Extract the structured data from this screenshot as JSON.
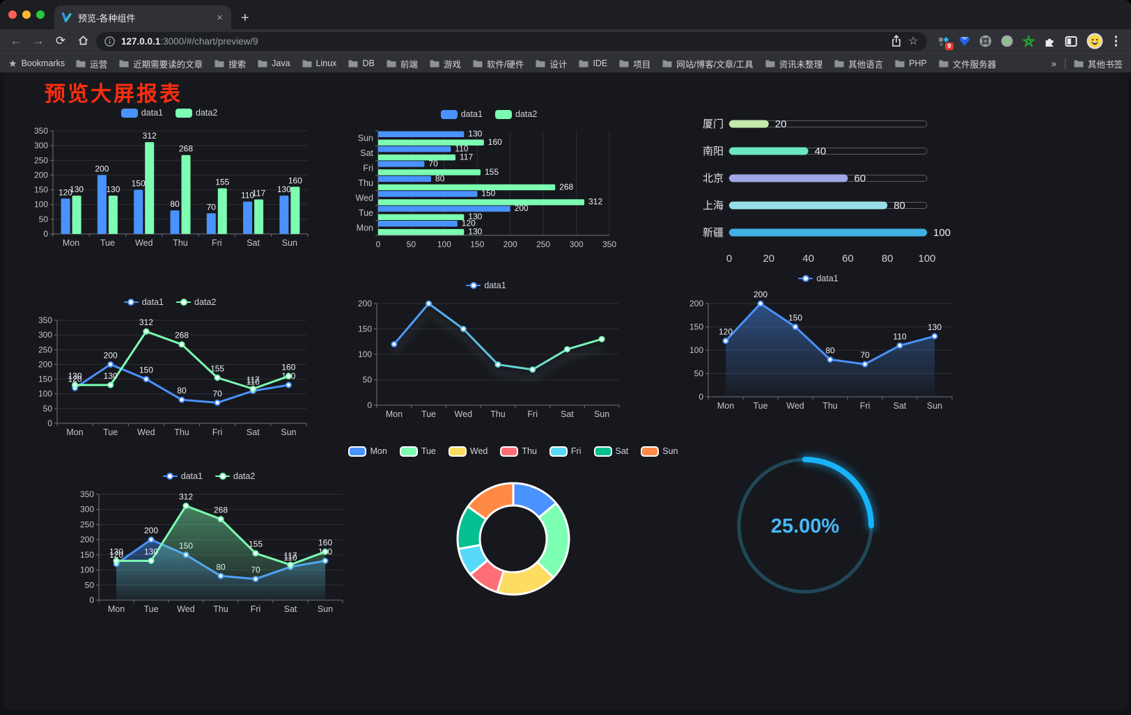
{
  "browser": {
    "tab": {
      "title": "预览-各种组件",
      "close": "×",
      "new_tab": "+"
    },
    "address": {
      "host": "127.0.0.1",
      "rest": ":3000/#/chart/preview/9"
    },
    "extensions_badge": "9",
    "bookmarks_bar": {
      "bookmarks_label": "Bookmarks",
      "folders": [
        "运营",
        "近期需要读的文章",
        "搜索",
        "Java",
        "Linux",
        "DB",
        "前端",
        "游戏",
        "软件/硬件",
        "设计",
        "IDE",
        "项目",
        "网站/博客/文章/工具",
        "资讯未整理",
        "其他语言",
        "PHP",
        "文件服务器"
      ],
      "overflow": "»",
      "other_bookmarks": "其他书签"
    }
  },
  "page": {
    "title": "预览大屏报表",
    "title_color": "#ff2e0e"
  },
  "chart_data": [
    {
      "mount": "c1",
      "type": "bar",
      "categories": [
        "Mon",
        "Tue",
        "Wed",
        "Thu",
        "Fri",
        "Sat",
        "Sun"
      ],
      "series": [
        {
          "name": "data1",
          "color": "#4992ff",
          "values": [
            120,
            200,
            150,
            80,
            70,
            110,
            130
          ]
        },
        {
          "name": "data2",
          "color": "#7cffb2",
          "values": [
            130,
            130,
            312,
            268,
            155,
            117,
            160
          ]
        }
      ],
      "ylim": [
        0,
        350
      ],
      "ystep": 50,
      "labels": true,
      "legend_position": "top"
    },
    {
      "mount": "c2",
      "type": "hbar",
      "categories": [
        "Mon",
        "Tue",
        "Wed",
        "Thu",
        "Fri",
        "Sat",
        "Sun"
      ],
      "series": [
        {
          "name": "data1",
          "color": "#4992ff",
          "values": [
            120,
            200,
            150,
            80,
            70,
            110,
            130
          ]
        },
        {
          "name": "data2",
          "color": "#7cffb2",
          "values": [
            130,
            130,
            312,
            268,
            155,
            117,
            160
          ]
        }
      ],
      "xlim": [
        0,
        350
      ],
      "xstep": 50,
      "labels": true,
      "legend_position": "top"
    },
    {
      "mount": "c3",
      "type": "progress",
      "items": [
        {
          "label": "厦门",
          "value": 20,
          "color": "#c4ebad"
        },
        {
          "label": "南阳",
          "value": 40,
          "color": "#6be6c1"
        },
        {
          "label": "北京",
          "value": 60,
          "color": "#a0a7e6"
        },
        {
          "label": "上海",
          "value": 80,
          "color": "#96dee8"
        },
        {
          "label": "新疆",
          "value": 100,
          "color": "#3fb1e3"
        }
      ],
      "xlim": [
        0,
        100
      ],
      "xticks": [
        0,
        20,
        40,
        60,
        80,
        100
      ]
    },
    {
      "mount": "c4",
      "type": "line",
      "categories": [
        "Mon",
        "Tue",
        "Wed",
        "Thu",
        "Fri",
        "Sat",
        "Sun"
      ],
      "series": [
        {
          "name": "data1",
          "color": "#4992ff",
          "values": [
            120,
            200,
            150,
            80,
            70,
            110,
            130
          ]
        },
        {
          "name": "data2",
          "color": "#7cffb2",
          "values": [
            130,
            130,
            312,
            268,
            155,
            117,
            160
          ]
        }
      ],
      "ylim": [
        0,
        350
      ],
      "ystep": 50,
      "labels": true,
      "legend_position": "top"
    },
    {
      "mount": "c5",
      "type": "line",
      "categories": [
        "Mon",
        "Tue",
        "Wed",
        "Thu",
        "Fri",
        "Sat",
        "Sun"
      ],
      "series": [
        {
          "name": "data1",
          "gradient": [
            "#4992ff",
            "#7cffb2"
          ],
          "shadow": true,
          "values": [
            120,
            200,
            150,
            80,
            70,
            110,
            130
          ]
        }
      ],
      "ylim": [
        0,
        200
      ],
      "ystep": 50,
      "labels": false,
      "legend_position": "top"
    },
    {
      "mount": "c6",
      "type": "line",
      "categories": [
        "Mon",
        "Tue",
        "Wed",
        "Thu",
        "Fri",
        "Sat",
        "Sun"
      ],
      "series": [
        {
          "name": "data1",
          "color": "#4992ff",
          "area": true,
          "values": [
            120,
            200,
            150,
            80,
            70,
            110,
            130
          ]
        }
      ],
      "ylim": [
        0,
        200
      ],
      "ystep": 50,
      "labels": true,
      "legend_position": "top"
    },
    {
      "mount": "c7",
      "type": "line",
      "categories": [
        "Mon",
        "Tue",
        "Wed",
        "Thu",
        "Fri",
        "Sat",
        "Sun"
      ],
      "series": [
        {
          "name": "data1",
          "color": "#4992ff",
          "area": true,
          "values": [
            120,
            200,
            150,
            80,
            70,
            110,
            130
          ]
        },
        {
          "name": "data2",
          "color": "#7cffb2",
          "area": true,
          "values": [
            130,
            130,
            312,
            268,
            155,
            117,
            160
          ]
        }
      ],
      "ylim": [
        0,
        350
      ],
      "ystep": 50,
      "labels": true,
      "legend_position": "top"
    },
    {
      "mount": "c8",
      "type": "pie",
      "categories": [
        "Mon",
        "Tue",
        "Wed",
        "Thu",
        "Fri",
        "Sat",
        "Sun"
      ],
      "values": [
        120,
        200,
        150,
        80,
        70,
        110,
        130
      ],
      "colors": [
        "#4992ff",
        "#7cffb2",
        "#fddd60",
        "#ff6e76",
        "#58d9f9",
        "#05c091",
        "#ff8a45"
      ],
      "inner_radius": 48,
      "outer_radius": 80,
      "legend_position": "top"
    },
    {
      "mount": "c9",
      "type": "gauge",
      "value": 25,
      "label": "25.00%",
      "color": "#18b2f9",
      "track_color": "#1f4857",
      "text_color": "#49b8f8"
    }
  ]
}
